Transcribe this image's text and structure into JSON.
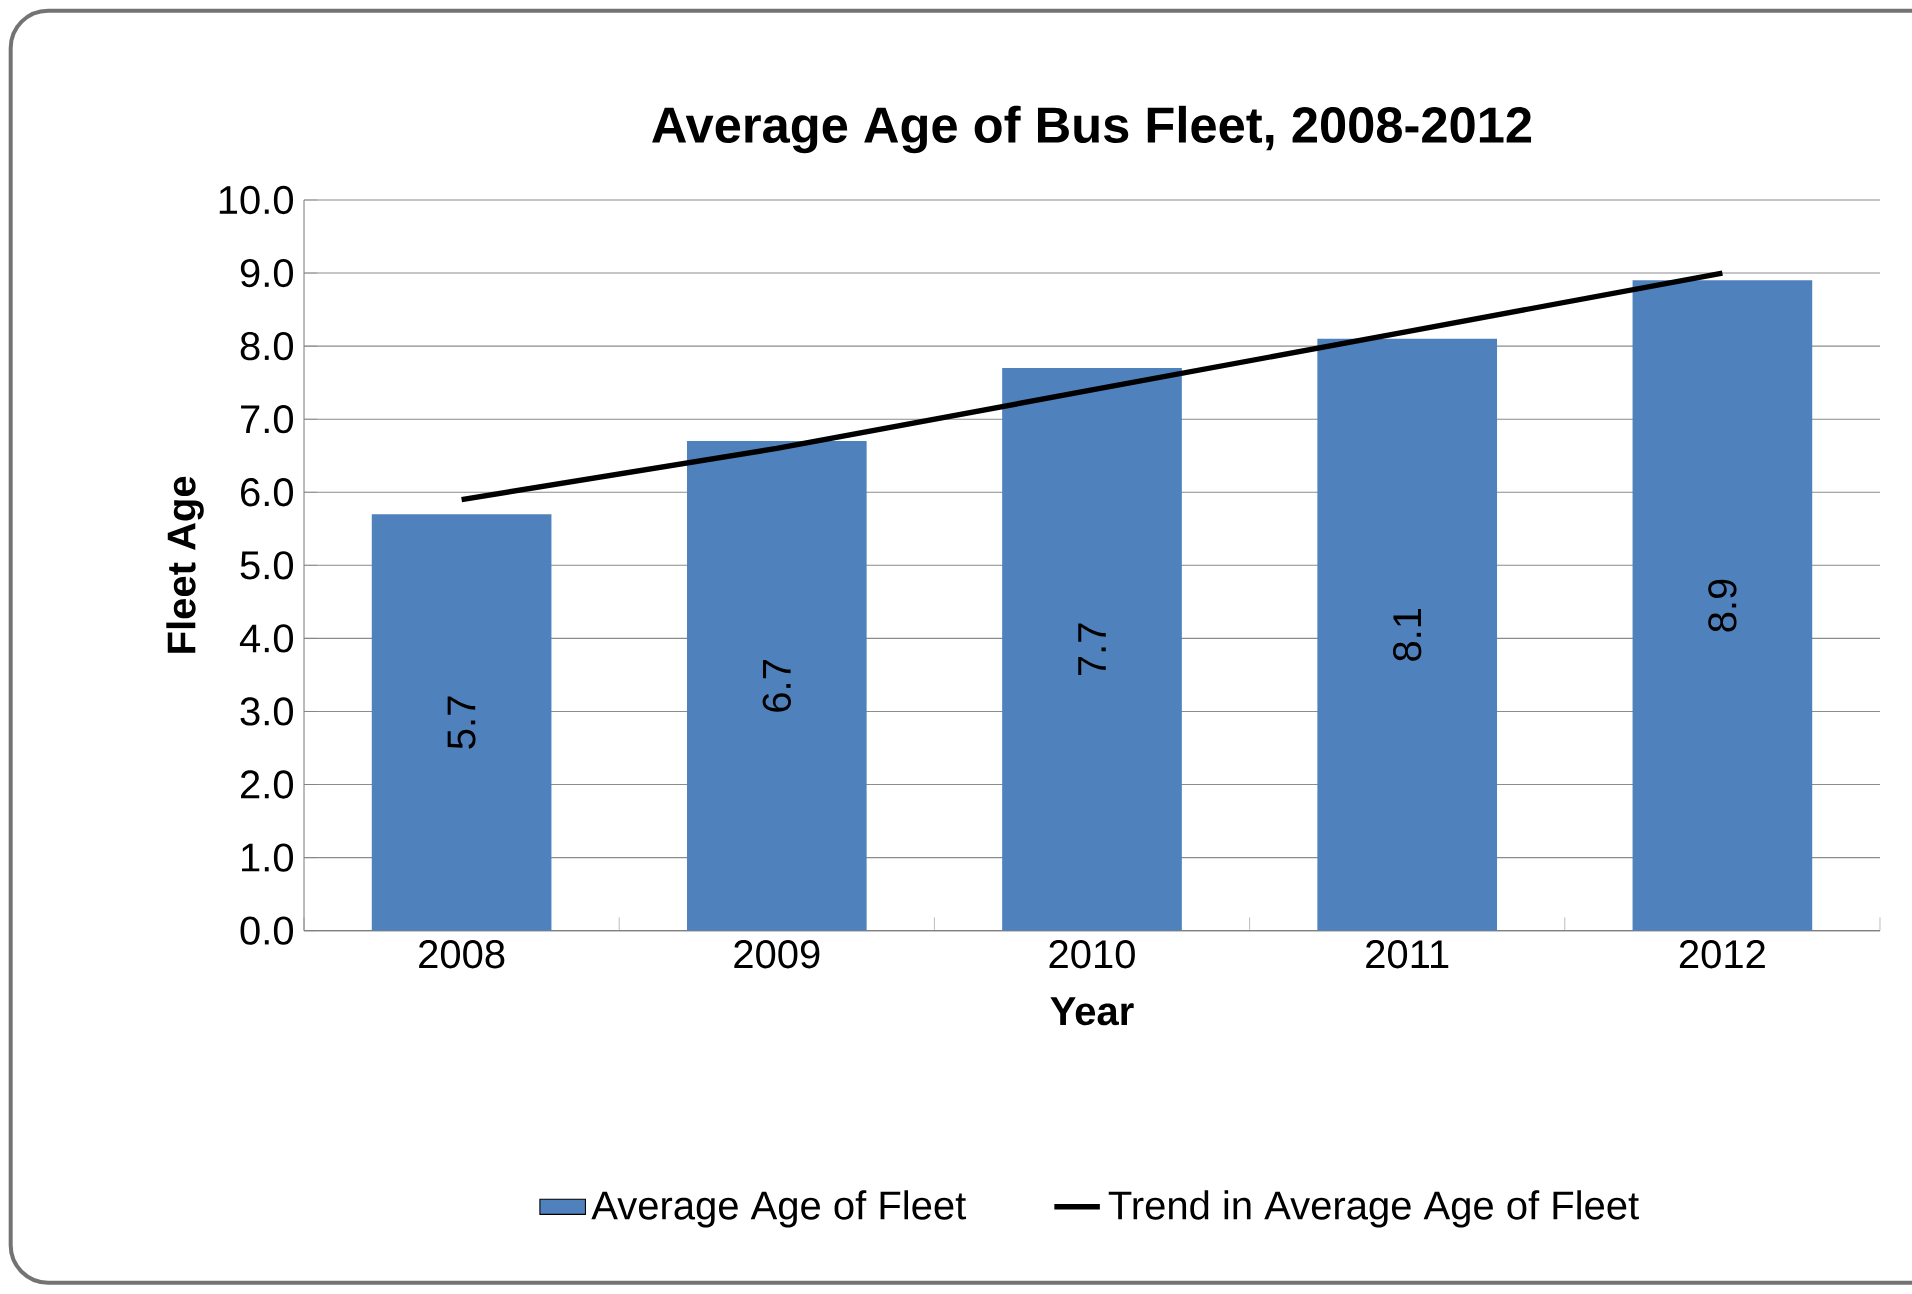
{
  "chart_data": {
    "type": "bar",
    "title": "Average Age of Bus Fleet, 2008-2012",
    "xlabel": "Year",
    "ylabel": "Fleet Age",
    "categories": [
      "2008",
      "2009",
      "2010",
      "2011",
      "2012"
    ],
    "series": [
      {
        "name": "Average Age of Fleet",
        "color": "#4f81bd",
        "values": [
          5.7,
          6.7,
          7.7,
          8.1,
          8.9
        ],
        "value_labels": [
          "5.7",
          "6.7",
          "7.7",
          "8.1",
          "8.9"
        ]
      },
      {
        "name": "Trend in Average Age of Fleet",
        "type": "line",
        "color": "#000000",
        "values": [
          5.9,
          6.6,
          7.4,
          8.2,
          9.0
        ]
      }
    ],
    "ylim": [
      0,
      10
    ],
    "yticks": [
      {
        "value": 0,
        "label": "0.0"
      },
      {
        "value": 1,
        "label": "1.0"
      },
      {
        "value": 2,
        "label": "2.0"
      },
      {
        "value": 3,
        "label": "3.0"
      },
      {
        "value": 4,
        "label": "4.0"
      },
      {
        "value": 5,
        "label": "5.0"
      },
      {
        "value": 6,
        "label": "6.0"
      },
      {
        "value": 7,
        "label": "7.0"
      },
      {
        "value": 8,
        "label": "8.0"
      },
      {
        "value": 9,
        "label": "9.0"
      },
      {
        "value": 10,
        "label": "10.0"
      }
    ],
    "grid": "y",
    "legend": "bottom",
    "marker": "none",
    "line_style": "solid"
  }
}
